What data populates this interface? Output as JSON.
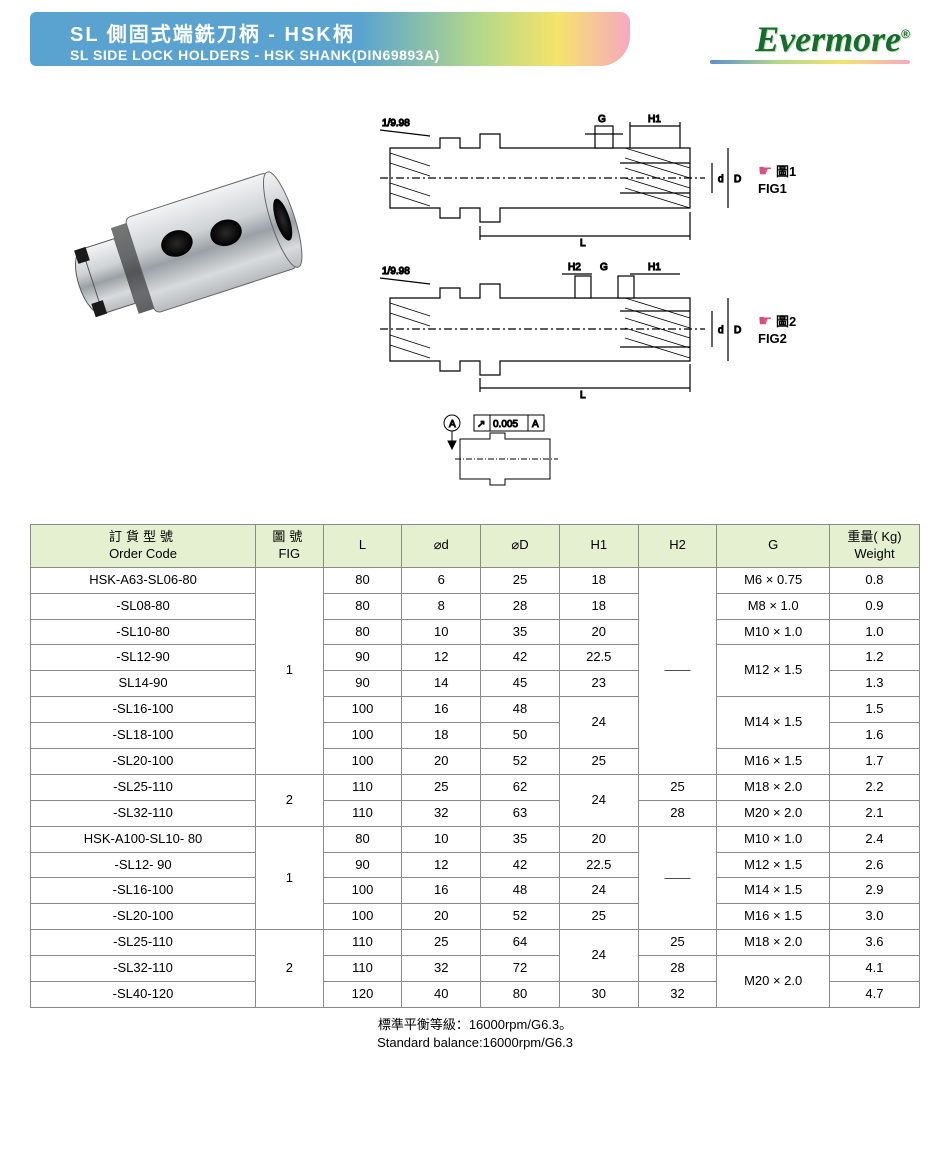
{
  "header": {
    "title_cn": "SL 側固式端銑刀柄 - HSK柄",
    "title_en": "SL SIDE LOCK HOLDERS - HSK SHANK(DIN69893A)",
    "brand": "Evermore"
  },
  "figures": {
    "taper": "1/9.98",
    "tol_sym": "⌖",
    "tol_val": "0.005",
    "tol_ref": "A",
    "fig1_cn": "圖1",
    "fig1_en": "FIG1",
    "fig2_cn": "圖2",
    "fig2_en": "FIG2",
    "dims": {
      "L": "L",
      "d": "d",
      "D": "D",
      "G": "G",
      "H1": "H1",
      "H2": "H2",
      "A": "A"
    }
  },
  "table": {
    "headers": {
      "order_cn": "訂貨型號",
      "order_en": "Order Code",
      "fig_cn": "圖號",
      "fig_en": "FIG",
      "L": "L",
      "d": "⌀d",
      "D": "⌀D",
      "H1": "H1",
      "H2": "H2",
      "G": "G",
      "wt_cn": "重量( Kg)",
      "wt_en": "Weight"
    },
    "groups": [
      {
        "fig": "1",
        "h2": "——",
        "rows": [
          {
            "code": "HSK-A63-SL06-80",
            "L": "80",
            "d": "6",
            "D": "25",
            "H1": "18",
            "G": "M6 × 0.75",
            "wt": "0.8"
          },
          {
            "code": "-SL08-80",
            "L": "80",
            "d": "8",
            "D": "28",
            "H1": "18",
            "G": "M8 × 1.0",
            "wt": "0.9"
          },
          {
            "code": "-SL10-80",
            "L": "80",
            "d": "10",
            "D": "35",
            "H1": "20",
            "G": "M10 × 1.0",
            "wt": "1.0"
          },
          {
            "code": "-SL12-90",
            "L": "90",
            "d": "12",
            "D": "42",
            "H1": "22.5",
            "G": "M12 × 1.5",
            "wt": "1.2",
            "g_rs": 2
          },
          {
            "code": "SL14-90",
            "L": "90",
            "d": "14",
            "D": "45",
            "H1": "23",
            "wt": "1.3"
          },
          {
            "code": "-SL16-100",
            "L": "100",
            "d": "16",
            "D": "48",
            "H1": "24",
            "h1_rs": 2,
            "G": "M14 × 1.5",
            "wt": "1.5",
            "g_rs": 2
          },
          {
            "code": "-SL18-100",
            "L": "100",
            "d": "18",
            "D": "50",
            "wt": "1.6"
          },
          {
            "code": "-SL20-100",
            "L": "100",
            "d": "20",
            "D": "52",
            "H1": "25",
            "G": "M16 × 1.5",
            "wt": "1.7"
          }
        ]
      },
      {
        "fig": "2",
        "rows": [
          {
            "code": "-SL25-110",
            "L": "110",
            "d": "25",
            "D": "62",
            "H1": "24",
            "h1_rs": 2,
            "H2": "25",
            "G": "M18 × 2.0",
            "wt": "2.2"
          },
          {
            "code": "-SL32-110",
            "L": "110",
            "d": "32",
            "D": "63",
            "H2": "28",
            "G": "M20 × 2.0",
            "wt": "2.1"
          }
        ]
      },
      {
        "fig": "1",
        "h2": "——",
        "rows": [
          {
            "code": "HSK-A100-SL10- 80",
            "L": "80",
            "d": "10",
            "D": "35",
            "H1": "20",
            "G": "M10 × 1.0",
            "wt": "2.4"
          },
          {
            "code": "-SL12- 90",
            "L": "90",
            "d": "12",
            "D": "42",
            "H1": "22.5",
            "G": "M12 × 1.5",
            "wt": "2.6"
          },
          {
            "code": "-SL16-100",
            "L": "100",
            "d": "16",
            "D": "48",
            "H1": "24",
            "G": "M14 × 1.5",
            "wt": "2.9"
          },
          {
            "code": "-SL20-100",
            "L": "100",
            "d": "20",
            "D": "52",
            "H1": "25",
            "G": "M16 × 1.5",
            "wt": "3.0"
          }
        ]
      },
      {
        "fig": "2",
        "rows": [
          {
            "code": "-SL25-110",
            "L": "110",
            "d": "25",
            "D": "64",
            "H1": "24",
            "h1_rs": 2,
            "H2": "25",
            "G": "M18 × 2.0",
            "wt": "3.6"
          },
          {
            "code": "-SL32-110",
            "L": "110",
            "d": "32",
            "D": "72",
            "H2": "28",
            "G": "M20 × 2.0",
            "g_rs": 2,
            "wt": "4.1"
          },
          {
            "code": "-SL40-120",
            "L": "120",
            "d": "40",
            "D": "80",
            "H1": "30",
            "H2": "32",
            "wt": "4.7"
          }
        ]
      }
    ]
  },
  "footnote": {
    "cn": "標準平衡等級：16000rpm/G6.3。",
    "en": "Standard balance:16000rpm/G6.3"
  },
  "style": {
    "header_bg": "#e4f0d0",
    "border": "#8a8a8a",
    "fontsize_table": 13
  }
}
